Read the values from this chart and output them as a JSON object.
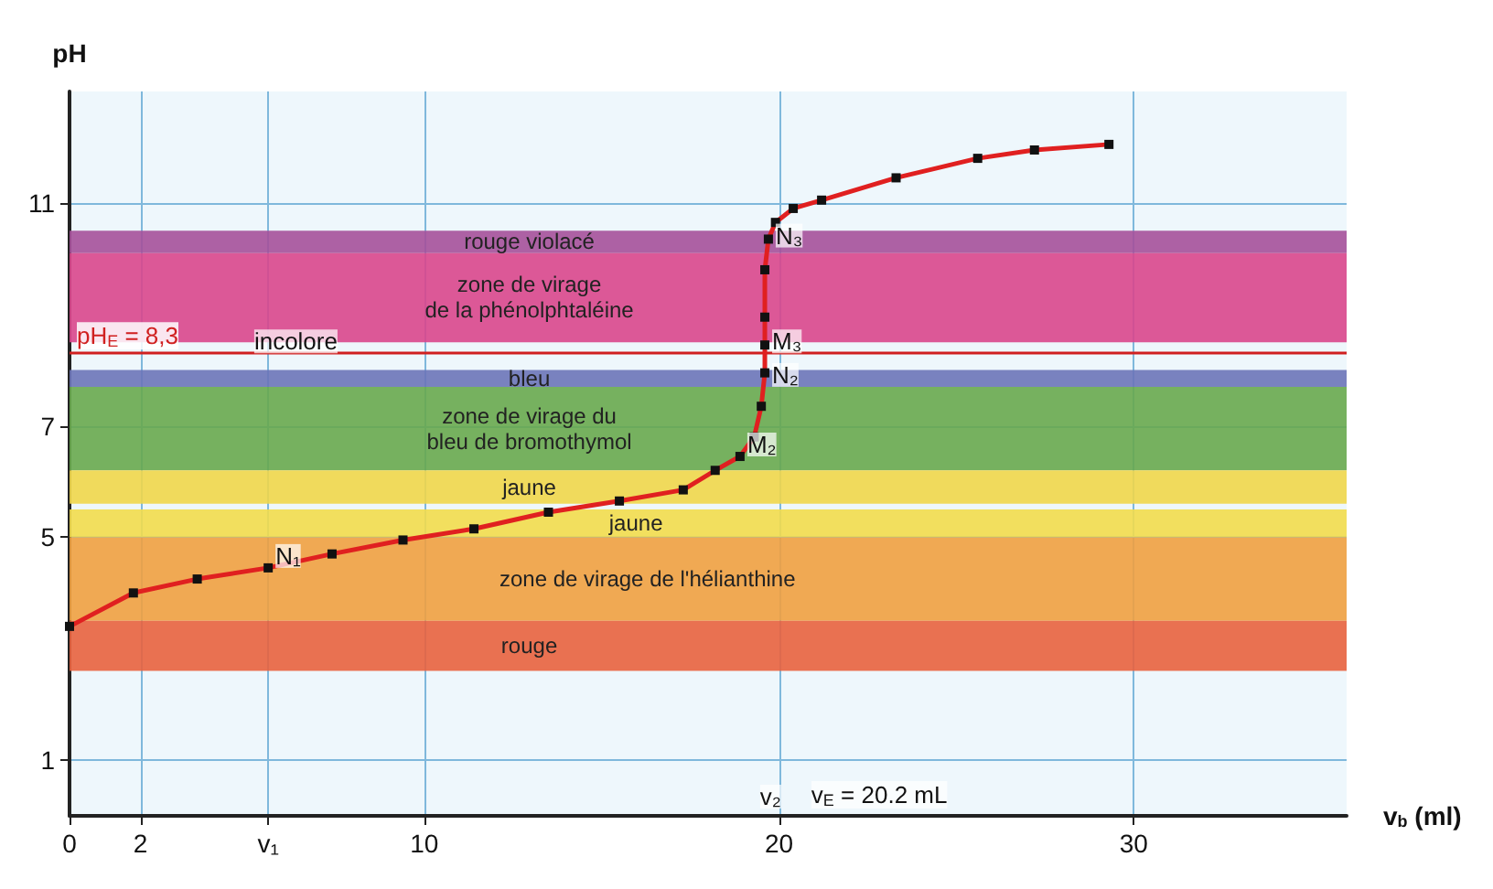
{
  "chart_data": {
    "type": "line",
    "xlabel": "v$_{b}$ (ml)",
    "ylabel": "pH",
    "x": [
      0,
      1.8,
      3.6,
      5.6,
      7.4,
      9.4,
      11.4,
      13.5,
      15.5,
      17.3,
      18.2,
      18.9,
      19.3,
      19.5,
      19.6,
      19.6,
      19.6,
      19.6,
      19.7,
      19.9,
      20.4,
      21.2,
      23.3,
      25.6,
      27.2,
      29.3
    ],
    "series": [
      {
        "color": "#e02020",
        "values": [
          3.4,
          4.0,
          4.25,
          4.45,
          4.7,
          4.95,
          5.15,
          5.45,
          5.65,
          5.85,
          6.2,
          6.45,
          6.8,
          7.35,
          7.95,
          8.45,
          8.95,
          9.8,
          10.35,
          10.65,
          10.9,
          11.05,
          11.45,
          11.8,
          11.95,
          12.05
        ]
      }
    ],
    "marker": "square",
    "grid": true,
    "xlim": [
      0,
      36
    ],
    "ylim": [
      0,
      13
    ],
    "xticks": [
      0,
      2,
      {
        "value": 5.6,
        "label": "v₁"
      },
      10,
      20,
      30
    ],
    "yticks": [
      1,
      5,
      7,
      11
    ],
    "bands": [
      {
        "axis": "y",
        "from": 10.1,
        "to": 10.5,
        "label": "rouge violacé",
        "color": "#a5509a"
      },
      {
        "axis": "y",
        "from": 8.5,
        "to": 10.1,
        "label": "zone de virage\nde la phénolphtaléine",
        "color": "#d9468c"
      },
      {
        "axis": "y",
        "from": 7.7,
        "to": 8.0,
        "label": "bleu",
        "color": "#6b74b8"
      },
      {
        "axis": "y",
        "from": 6.2,
        "to": 7.7,
        "label": "zone de virage du\nbleu de bromothymol",
        "color": "#68a94e"
      },
      {
        "axis": "y",
        "from": 5.6,
        "to": 6.2,
        "label": "jaune",
        "color": "#efd64a"
      },
      {
        "axis": "y",
        "from": 5.0,
        "to": 5.5,
        "label": "jaune",
        "color": "#f2dc4c"
      },
      {
        "axis": "y",
        "from": 3.5,
        "to": 5.0,
        "label": "zone de virage de l'hélianthine",
        "color": "#f0a040"
      },
      {
        "axis": "y",
        "from": 2.6,
        "to": 3.5,
        "label": "rouge",
        "color": "#e8623e"
      }
    ],
    "ref_lines": [
      {
        "axis": "y",
        "value": 8.3,
        "label": "pH$_{E}$ = 8,3",
        "color": "#d02020",
        "line_style": "solid"
      }
    ],
    "annotations": [
      {
        "text": "incolore",
        "x": 5,
        "y": 8.3
      },
      {
        "text": "N₁",
        "x": 5.6,
        "y": 4.45
      },
      {
        "text": "M₂",
        "x": 18.9,
        "y": 6.45
      },
      {
        "text": "N₂",
        "x": 19.6,
        "y": 7.7
      },
      {
        "text": "M₃",
        "x": 19.6,
        "y": 8.3
      },
      {
        "text": "N₃",
        "x": 19.7,
        "y": 10.2
      },
      "v₂",
      "v$_{E}$ = 20.2 mL"
    ]
  }
}
